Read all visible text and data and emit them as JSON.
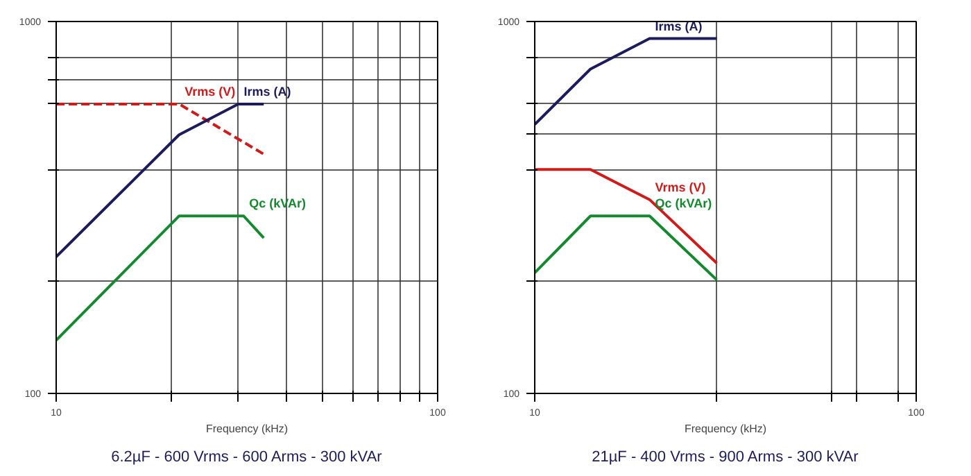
{
  "chart_data": [
    {
      "type": "line",
      "xlabel": "Frequency (kHz)",
      "log": "xy",
      "grid": true,
      "legend": false,
      "xlim": [
        10,
        100
      ],
      "ylim": [
        100,
        1000
      ],
      "xticks": [
        10,
        {
          "value": 20,
          "label": null
        },
        {
          "value": 30,
          "label": null
        },
        {
          "value": 40,
          "label": null
        },
        {
          "value": 50,
          "label": null
        },
        {
          "value": 60,
          "label": null
        },
        {
          "value": 70,
          "label": null
        },
        {
          "value": 80,
          "label": null
        },
        {
          "value": 90,
          "label": null
        },
        100
      ],
      "yticks": [
        100,
        {
          "value": 200,
          "label": null
        },
        {
          "value": 400,
          "label": null
        },
        {
          "value": 600,
          "label": null
        },
        {
          "value": 700,
          "label": null
        },
        {
          "value": 800,
          "label": null
        },
        1000
      ],
      "series": [
        {
          "name": "Vrms (V)",
          "color": "#d11a1a",
          "line_style": "dashed",
          "x": [
            10,
            21,
            35
          ],
          "values": [
            600,
            600,
            440
          ]
        },
        {
          "name": "Irms (A)",
          "color": "#1c1c5c",
          "x": [
            10,
            21,
            30,
            35
          ],
          "values": [
            233,
            496,
            600,
            600
          ]
        },
        {
          "name": "Qc (kVAr)",
          "color": "#138a2e",
          "x": [
            10,
            21,
            31,
            35
          ],
          "values": [
            139,
            300,
            300,
            262
          ]
        }
      ],
      "annotations": [
        "6.2µF - 600 Vrms - 600 Arms - 300 kVAr"
      ]
    },
    {
      "type": "line",
      "xlabel": "Frequency (kHz)",
      "log": "xy",
      "grid": true,
      "legend": false,
      "xlim": [
        10,
        100
      ],
      "ylim": [
        100,
        1000
      ],
      "xticks": [
        10,
        {
          "value": 30,
          "label": null
        },
        {
          "value": 60,
          "label": null
        },
        {
          "value": 70,
          "label": null
        },
        {
          "value": 90,
          "label": null
        },
        100
      ],
      "yticks": [
        100,
        {
          "value": 200,
          "label": null
        },
        {
          "value": 400,
          "label": null
        },
        {
          "value": 500,
          "label": null
        },
        {
          "value": 600,
          "label": null
        },
        {
          "value": 800,
          "label": null
        },
        1000
      ],
      "series": [
        {
          "name": "Irms (A)",
          "color": "#1c1c5c",
          "x": [
            10,
            14,
            20,
            30
          ],
          "values": [
            529,
            745,
            900,
            900
          ]
        },
        {
          "name": "Vrms (V)",
          "color": "#d11a1a",
          "x": [
            10,
            14,
            20,
            30
          ],
          "values": [
            400,
            400,
            332,
            224
          ]
        },
        {
          "name": "Qc (kVAr)",
          "color": "#138a2e",
          "x": [
            10,
            14,
            20,
            30
          ],
          "values": [
            211,
            300,
            300,
            202
          ]
        }
      ],
      "annotations": [
        "21µF - 400 Vrms - 900 Arms - 300 kVAr"
      ]
    }
  ]
}
